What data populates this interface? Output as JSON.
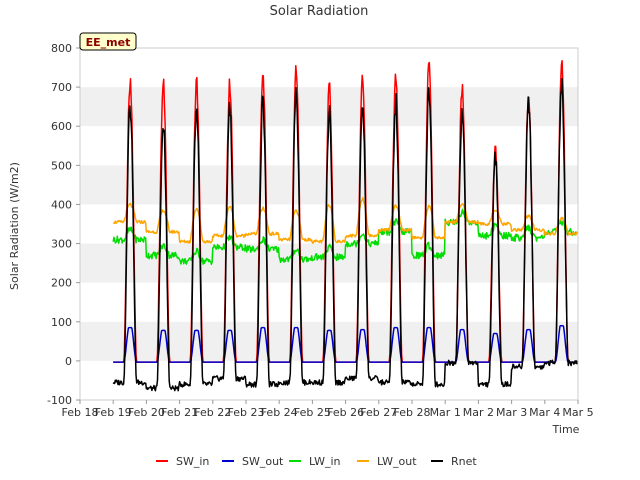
{
  "chart_data": {
    "type": "line",
    "title": "Solar Radiation",
    "xlabel": "Time",
    "ylabel": "Solar Radiation (W/m2)",
    "badge": "EE_met",
    "ylim": [
      -100,
      800
    ],
    "yticks": [
      -100,
      0,
      100,
      200,
      300,
      400,
      500,
      600,
      700,
      800
    ],
    "xlim_days": [
      0,
      15
    ],
    "xticks": [
      "Feb 18",
      "Feb 19",
      "Feb 20",
      "Feb 21",
      "Feb 22",
      "Feb 23",
      "Feb 24",
      "Feb 25",
      "Feb 26",
      "Feb 27",
      "Feb 28",
      "Mar 1",
      "Mar 2",
      "Mar 3",
      "Mar 4",
      "Mar 5"
    ],
    "grid": "horizontal bands",
    "legend_position": "bottom",
    "series": [
      {
        "name": "SW_in",
        "color": "#ff0000",
        "daily_peak": [
          735,
          725,
          735,
          730,
          750,
          765,
          720,
          745,
          750,
          780,
          720,
          560,
          705,
          785
        ],
        "night_value": -3
      },
      {
        "name": "SW_out",
        "color": "#0000cc",
        "daily_peak": [
          85,
          78,
          78,
          78,
          85,
          85,
          78,
          80,
          85,
          85,
          80,
          70,
          80,
          90
        ],
        "night_value": -3
      },
      {
        "name": "LW_in",
        "color": "#00dd00",
        "daily": [
          310,
          270,
          255,
          290,
          285,
          260,
          265,
          300,
          330,
          270,
          355,
          320,
          315,
          330
        ]
      },
      {
        "name": "LW_out",
        "color": "#ffa500",
        "daily": [
          355,
          330,
          305,
          320,
          325,
          310,
          305,
          320,
          335,
          315,
          355,
          350,
          335,
          325
        ],
        "daily_peak": [
          400,
          385,
          390,
          395,
          390,
          385,
          400,
          415,
          395,
          395,
          400,
          385,
          370,
          365
        ]
      },
      {
        "name": "Rnet",
        "color": "#000000",
        "daily_peak": [
          680,
          645,
          680,
          675,
          695,
          710,
          665,
          690,
          690,
          720,
          670,
          545,
          690,
          735
        ],
        "night_value": [
          -55,
          -70,
          -60,
          -45,
          -60,
          -55,
          -55,
          -45,
          -55,
          -60,
          -5,
          -60,
          -15,
          -5
        ]
      }
    ]
  }
}
